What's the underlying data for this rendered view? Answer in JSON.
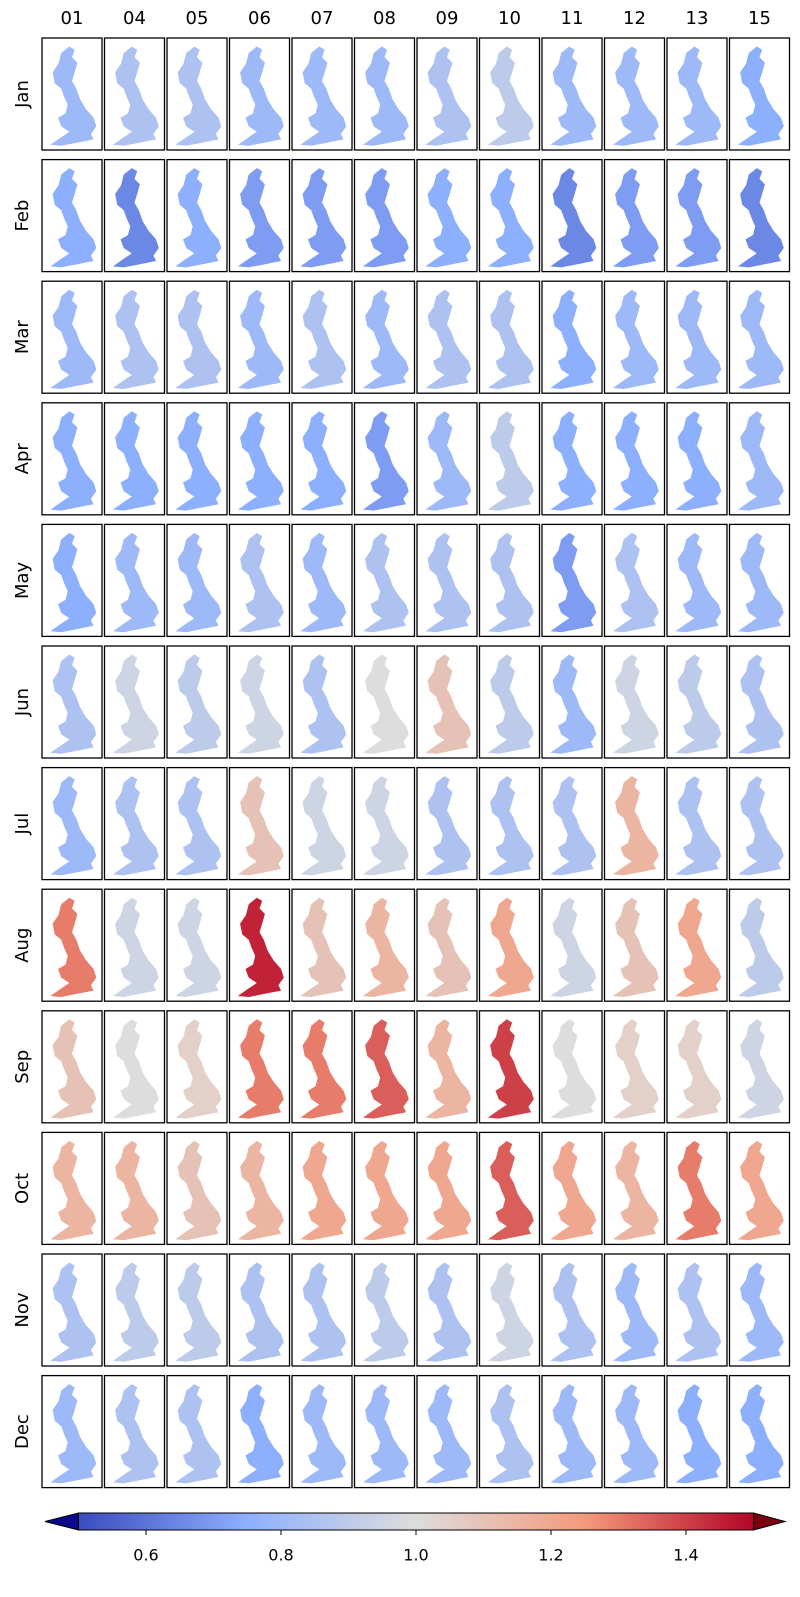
{
  "chart_data": {
    "type": "map_grid",
    "columns": [
      "01",
      "04",
      "05",
      "06",
      "07",
      "08",
      "09",
      "10",
      "11",
      "12",
      "13",
      "15"
    ],
    "rows": [
      "Jan",
      "Feb",
      "Mar",
      "Apr",
      "May",
      "Jun",
      "Jul",
      "Aug",
      "Sep",
      "Oct",
      "Nov",
      "Dec"
    ],
    "values": [
      [
        0.8,
        0.85,
        0.85,
        0.8,
        0.8,
        0.8,
        0.85,
        0.9,
        0.8,
        0.8,
        0.8,
        0.75
      ],
      [
        0.75,
        0.65,
        0.75,
        0.7,
        0.7,
        0.7,
        0.75,
        0.75,
        0.65,
        0.7,
        0.7,
        0.65
      ],
      [
        0.8,
        0.85,
        0.85,
        0.8,
        0.85,
        0.8,
        0.85,
        0.85,
        0.75,
        0.8,
        0.8,
        0.8
      ],
      [
        0.75,
        0.75,
        0.75,
        0.75,
        0.75,
        0.7,
        0.8,
        0.9,
        0.75,
        0.75,
        0.75,
        0.8
      ],
      [
        0.75,
        0.8,
        0.8,
        0.85,
        0.8,
        0.85,
        0.85,
        0.85,
        0.7,
        0.85,
        0.8,
        0.8
      ],
      [
        0.85,
        0.95,
        0.9,
        0.95,
        0.85,
        1.0,
        1.1,
        0.9,
        0.8,
        0.95,
        0.9,
        0.85
      ],
      [
        0.8,
        0.85,
        0.85,
        1.1,
        0.95,
        0.95,
        0.85,
        0.85,
        0.85,
        1.15,
        0.85,
        0.85
      ],
      [
        1.3,
        0.95,
        0.95,
        1.45,
        1.1,
        1.15,
        1.1,
        1.2,
        0.95,
        1.1,
        1.2,
        0.9
      ],
      [
        1.1,
        1.0,
        1.05,
        1.3,
        1.3,
        1.35,
        1.15,
        1.4,
        1.0,
        1.05,
        1.05,
        0.95
      ],
      [
        1.15,
        1.15,
        1.1,
        1.15,
        1.2,
        1.2,
        1.2,
        1.35,
        1.2,
        1.15,
        1.3,
        1.2
      ],
      [
        0.85,
        0.9,
        0.9,
        0.85,
        0.85,
        0.9,
        0.85,
        0.95,
        0.85,
        0.8,
        0.85,
        0.8
      ],
      [
        0.8,
        0.85,
        0.85,
        0.75,
        0.8,
        0.8,
        0.8,
        0.85,
        0.8,
        0.8,
        0.75,
        0.75
      ]
    ],
    "clim": [
      0.5,
      1.5
    ],
    "cticks": [
      0.6,
      0.8,
      {
        "value": 1,
        "label": "1.0"
      },
      1.2,
      1.4
    ],
    "colors": [
      "#3b4cc0",
      "#8db0fe",
      "#dddddd",
      "#f49a7b",
      "#b40426"
    ],
    "extend_colors": [
      "#0a0a8a",
      "#7a0010"
    ]
  }
}
